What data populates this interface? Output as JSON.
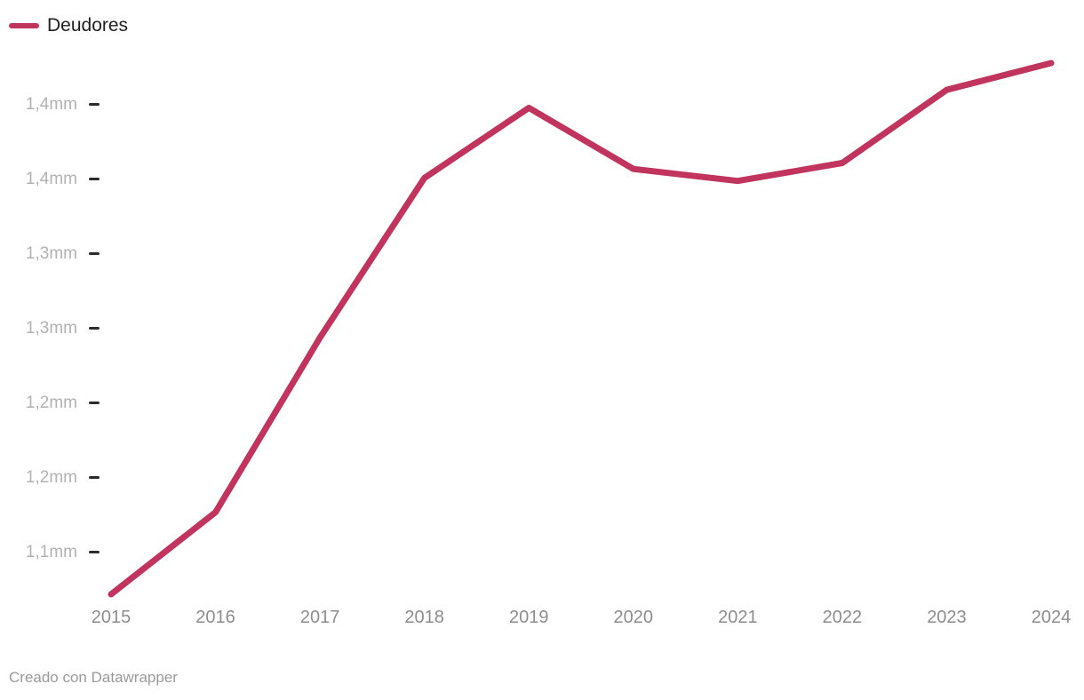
{
  "legend": {
    "series_label": "Deudores"
  },
  "footer": {
    "credit": "Creado con Datawrapper"
  },
  "colors": {
    "line": "#c1345e",
    "y_tick_label": "#b2b2b2",
    "x_tick_label": "#8d8d8d",
    "tick_mark": "#2b2b2b",
    "legend_text": "#1f1f1f",
    "footer_text": "#9a9a9a"
  },
  "chart_data": {
    "type": "line",
    "title": "",
    "legend_position": "top-left",
    "grid": false,
    "value_unit_suffix": "mm",
    "x": [
      2015,
      2016,
      2017,
      2018,
      2019,
      2020,
      2021,
      2022,
      2023,
      2024
    ],
    "x_tick_labels": [
      "2015",
      "2016",
      "2017",
      "2018",
      "2019",
      "2020",
      "2021",
      "2022",
      "2023",
      "2024"
    ],
    "series": [
      {
        "name": "Deudores",
        "color": "#c1345e",
        "values": [
          1.072,
          1.127,
          1.244,
          1.351,
          1.398,
          1.357,
          1.349,
          1.361,
          1.41,
          1.428
        ]
      }
    ],
    "y_ticks": [
      {
        "value": 1.4,
        "label": "1,4mm"
      },
      {
        "value": 1.35,
        "label": "1,4mm"
      },
      {
        "value": 1.3,
        "label": "1,3mm"
      },
      {
        "value": 1.25,
        "label": "1,3mm"
      },
      {
        "value": 1.2,
        "label": "1,2mm"
      },
      {
        "value": 1.15,
        "label": "1,2mm"
      },
      {
        "value": 1.1,
        "label": "1,1mm"
      }
    ],
    "ylim": [
      1.045,
      1.445
    ],
    "xlim": [
      2015,
      2024
    ]
  }
}
